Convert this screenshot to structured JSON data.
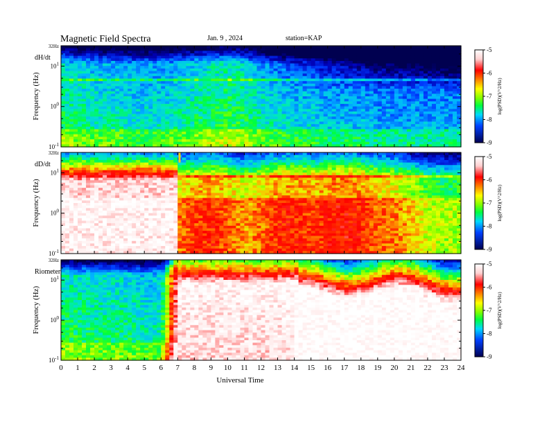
{
  "header": {
    "title": "Magnetic  Field  Spectra",
    "date": "Jan. 9 , 2024",
    "station": "station=KAP"
  },
  "colorbar": {
    "label": "log(PSD)(V^2/Hz)",
    "ticks": [
      "-5",
      "-6",
      "-7",
      "-8",
      "-9"
    ],
    "range": [
      -9,
      -5
    ],
    "colors": [
      "#000060",
      "#0020ff",
      "#00c8ff",
      "#00ff40",
      "#b0ff00",
      "#ffff00",
      "#ff8000",
      "#ff0000",
      "#ffe0e0",
      "#ffffff"
    ]
  },
  "chart_data": [
    {
      "type": "heatmap",
      "panel_label": "dH/dt",
      "ylabel": "Frequency (Hz)",
      "ytick_labels": [
        "32Hz",
        "10^1",
        "10^0",
        "10^-1"
      ],
      "ylim_hz": [
        0.1,
        32
      ],
      "y_scale": "log",
      "xlim": [
        0,
        24
      ],
      "background_level": [
        -7.3,
        -7.4,
        -7.5,
        -7.5,
        -7.6,
        -7.6,
        -7.6,
        -7.5,
        -7.4,
        -7.3,
        -7.2,
        -7.3,
        -7.5,
        -7.6,
        -7.7,
        -7.7,
        -7.8,
        -7.8,
        -7.8,
        -7.9,
        -7.9,
        -7.9,
        -7.9,
        -7.9
      ],
      "notes": "broadband green/yellow, blue above ~3 Hz after 12 UT, band near 7 Hz"
    },
    {
      "type": "heatmap",
      "panel_label": "dD/dt",
      "ylabel": "Frequency (Hz)",
      "ytick_labels": [
        "32Hz",
        "10^1",
        "10^0",
        "10^-1"
      ],
      "ylim_hz": [
        0.1,
        32
      ],
      "y_scale": "log",
      "xlim": [
        0,
        24
      ],
      "gap_hours": [
        0,
        7.1
      ],
      "background_level": [
        -5.2,
        -5.2,
        -5.2,
        -5.2,
        -5.2,
        -5.2,
        -5.2,
        -6.4,
        -6.2,
        -6.1,
        -6.3,
        -6.5,
        -6.4,
        -6.1,
        -6.1,
        -6.2,
        -6.1,
        -6.0,
        -6.1,
        -6.3,
        -6.4,
        -6.6,
        -6.9,
        -7.0
      ]
    },
    {
      "type": "heatmap",
      "panel_label": "Riometer",
      "ylabel": "Frequency (Hz)",
      "ytick_labels": [
        "32Hz",
        "10^1",
        "10^0",
        "10^-1"
      ],
      "ylim_hz": [
        0.1,
        32
      ],
      "y_scale": "log",
      "xlim": [
        0,
        24
      ],
      "xlabel": "Universal Time",
      "xtick_labels": [
        "0",
        "1",
        "2",
        "3",
        "4",
        "5",
        "6",
        "7",
        "8",
        "9",
        "10",
        "11",
        "12",
        "13",
        "14",
        "15",
        "16",
        "17",
        "18",
        "19",
        "20",
        "21",
        "22",
        "23",
        "24"
      ],
      "background_level": [
        -7.3,
        -7.3,
        -7.4,
        -7.4,
        -7.4,
        -7.5,
        -7.5,
        -5.1,
        -5.1,
        -5.1,
        -5.1,
        -5.1,
        -5.1,
        -5.1,
        -5.0,
        -4.9,
        -4.9,
        -4.9,
        -4.9,
        -4.9,
        -5.0,
        -5.0,
        -5.1,
        -5.2
      ]
    }
  ]
}
